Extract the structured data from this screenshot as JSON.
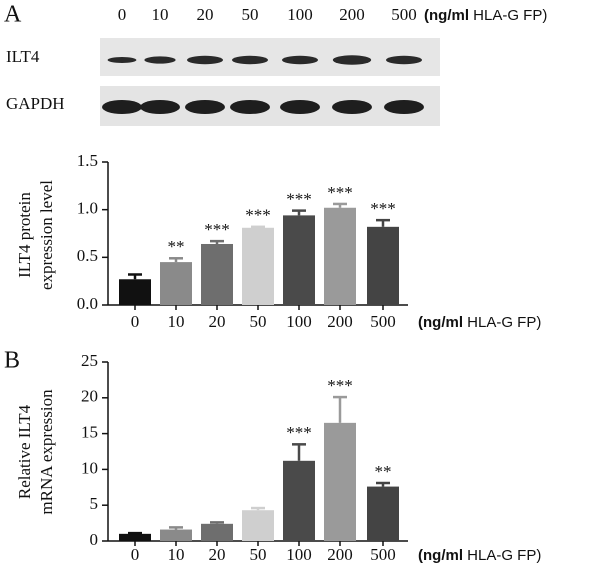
{
  "blot": {
    "panel_label": "A",
    "lanes": [
      "0",
      "10",
      "20",
      "50",
      "100",
      "200",
      "500"
    ],
    "unit_bold": "(ng/ml",
    "unit": "HLA-G FP)",
    "rows": [
      "ILT4",
      "GAPDH"
    ]
  },
  "chart_data": [
    {
      "type": "bar",
      "ylabel": [
        "ILT4 protein",
        "expression level"
      ],
      "categories": [
        "0",
        "10",
        "20",
        "50",
        "100",
        "200",
        "500"
      ],
      "values": [
        0.27,
        0.45,
        0.64,
        0.81,
        0.94,
        1.02,
        0.82
      ],
      "errors": [
        0.05,
        0.04,
        0.03,
        0.01,
        0.05,
        0.04,
        0.07
      ],
      "annotations": [
        null,
        "**",
        "***",
        "***",
        "***",
        "***",
        "***"
      ],
      "colors": [
        "#111111",
        "#8a8a8a",
        "#6e6e6e",
        "#cfcfcf",
        "#4a4a4a",
        "#9a9a9a",
        "#444444"
      ],
      "ylim": [
        0,
        1.5
      ],
      "yticks": [
        {
          "value": 0,
          "label": "0.0"
        },
        0.5,
        {
          "value": 1,
          "label": "1.0"
        },
        1.5
      ],
      "xlabel_bold": "(ng/ml",
      "xlabel": "HLA-G FP)"
    },
    {
      "type": "bar",
      "panel_label": "B",
      "ylabel": [
        "Relative ILT4",
        "mRNA expression"
      ],
      "categories": [
        "0",
        "10",
        "20",
        "50",
        "100",
        "200",
        "500"
      ],
      "values": [
        1,
        1.6,
        2.4,
        4.3,
        11.2,
        16.5,
        7.6
      ],
      "errors": [
        0.1,
        0.3,
        0.2,
        0.3,
        2.3,
        3.6,
        0.5
      ],
      "annotations": [
        null,
        null,
        null,
        null,
        "***",
        "***",
        "**"
      ],
      "colors": [
        "#111111",
        "#8a8a8a",
        "#6e6e6e",
        "#cfcfcf",
        "#4a4a4a",
        "#9a9a9a",
        "#444444"
      ],
      "ylim": [
        0,
        25
      ],
      "yticks": [
        0,
        5,
        10,
        15,
        20,
        25
      ],
      "xlabel_bold": "(ng/ml",
      "xlabel": "HLA-G FP)"
    }
  ]
}
